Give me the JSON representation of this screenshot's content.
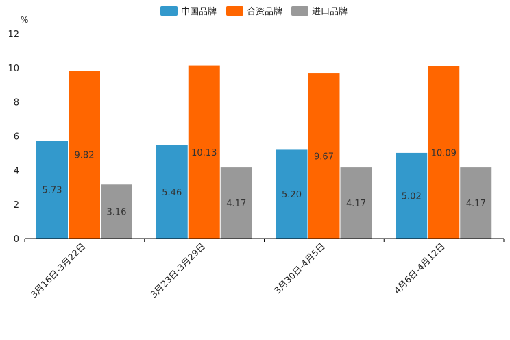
{
  "chart_data": {
    "type": "bar",
    "title": "",
    "xlabel": "",
    "ylabel": "%",
    "ylim": [
      0,
      12
    ],
    "yticks": [
      "0",
      "2",
      "4",
      "6",
      "8",
      "10",
      "12"
    ],
    "grid": false,
    "legend_position": "top-center",
    "categories": [
      "3月16日-3月22日",
      "3月23日-3月29日",
      "3月30日-4月5日",
      "4月6日-4月12日"
    ],
    "series": [
      {
        "name": "中国品牌",
        "color": "#3399cc",
        "values": [
          5.73,
          5.46,
          5.2,
          5.02
        ],
        "labels": [
          "5.73",
          "5.46",
          "5.20",
          "5.02"
        ]
      },
      {
        "name": "合资品牌",
        "color": "#ff6600",
        "values": [
          9.82,
          10.13,
          9.67,
          10.09
        ],
        "labels": [
          "9.82",
          "10.13",
          "9.67",
          "10.09"
        ]
      },
      {
        "name": "进口品牌",
        "color": "#999999",
        "values": [
          3.16,
          4.17,
          4.17,
          4.17
        ],
        "labels": [
          "3.16",
          "4.17",
          "4.17",
          "4.17"
        ]
      }
    ]
  }
}
